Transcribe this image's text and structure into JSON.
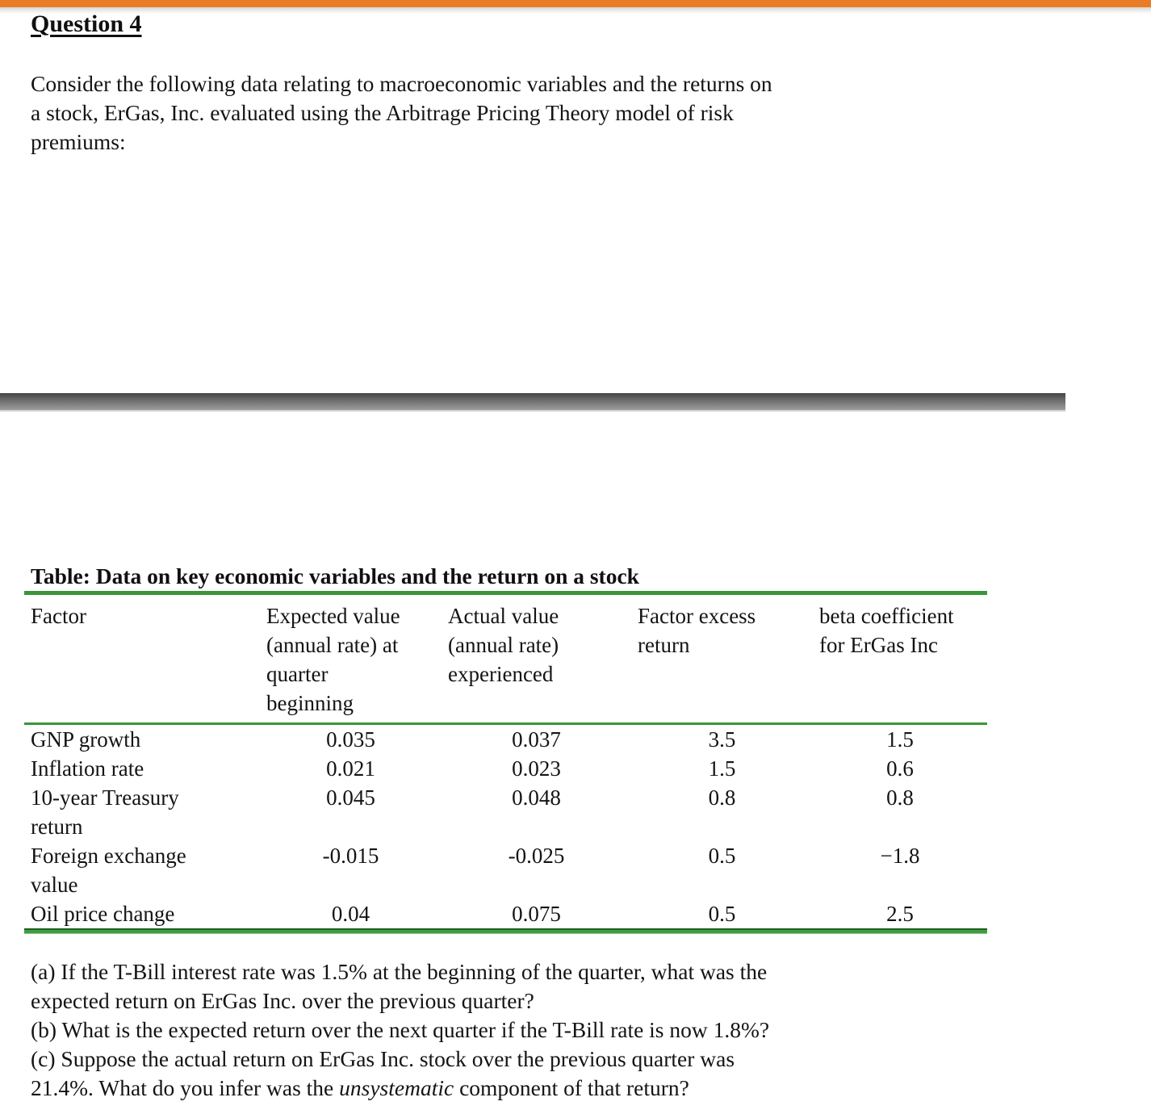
{
  "colors": {
    "accent_orange": "#E97C26",
    "table_green": "#3A9639",
    "divider_gray_top": "#444444",
    "divider_gray_bottom": "#9E9E9E"
  },
  "doc": {
    "title": "Question 4",
    "intro": "Consider the following data relating to macroeconomic variables and the returns on\na stock, ErGas, Inc. evaluated using the Arbitrage Pricing Theory model of risk\npremiums:"
  },
  "table": {
    "title": "Table: Data on key economic variables and the return on a stock",
    "columns": [
      "Factor",
      "Expected value\n(annual rate) at\nquarter\nbeginning",
      "Actual value\n(annual rate)\nexperienced",
      "Factor excess\nreturn",
      "beta coefficient\nfor ErGas Inc"
    ],
    "rows": [
      {
        "factor": "GNP growth",
        "expected": "0.035",
        "actual": "0.037",
        "excess": "3.5",
        "beta": "1.5"
      },
      {
        "factor": "Inflation rate",
        "expected": "0.021",
        "actual": "0.023",
        "excess": "1.5",
        "beta": "0.6"
      },
      {
        "factor": "10-year Treasury\nreturn",
        "expected": "0.045",
        "actual": "0.048",
        "excess": "0.8",
        "beta": "0.8"
      },
      {
        "factor": "Foreign exchange\nvalue",
        "expected": "-0.015",
        "actual": "-0.025",
        "excess": "0.5",
        "beta": "−1.8"
      },
      {
        "factor": "Oil price change",
        "expected": "0.04",
        "actual": "0.075",
        "excess": "0.5",
        "beta": "2.5"
      }
    ]
  },
  "questions": {
    "a": "(a) If the T-Bill interest rate was 1.5% at the beginning of the quarter, what was the\nexpected return on ErGas Inc. over the previous quarter?",
    "b": "(b) What is the expected return over the next quarter if the T-Bill rate is now 1.8%?",
    "c_prefix": "(c) Suppose the actual return on ErGas Inc. stock over the previous quarter was\n21.4%. What do you infer was the ",
    "c_italic": "unsystematic",
    "c_suffix": " component of that return?"
  }
}
